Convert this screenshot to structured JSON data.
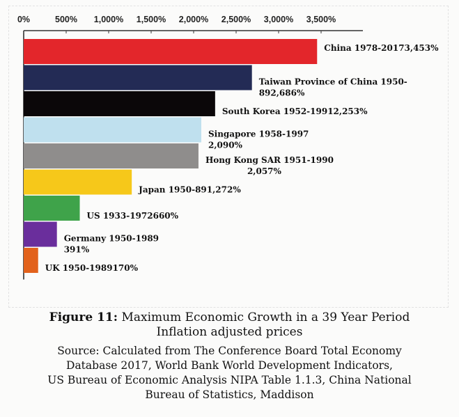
{
  "chart_data": {
    "type": "bar",
    "orientation": "horizontal",
    "x_ticks": [
      "0%",
      "500%",
      "1,000%",
      "1,500%",
      "2,000%",
      "2,500%",
      "3,000%",
      "3,500%"
    ],
    "xlim": [
      0,
      3500
    ],
    "axis_position": "top",
    "grid": false,
    "categories": [
      "China",
      "Taiwan Province of China",
      "South Korea",
      "Singapore",
      "Hong Kong SAR",
      "Japan",
      "US",
      "Germany",
      "UK"
    ],
    "values": [
      3453,
      2686,
      2253,
      2090,
      2057,
      1272,
      660,
      391,
      170
    ],
    "colors": [
      "#e3262b",
      "#232b55",
      "#0b0709",
      "#bfe0ee",
      "#8f8d8c",
      "#f6c81a",
      "#3fa34a",
      "#6a2e9c",
      "#e2621c"
    ],
    "labels": [
      [
        "China 1978-20173,453%"
      ],
      [
        "Taiwan Province of China 1950-",
        "892,686%"
      ],
      [
        "South Korea 1952-19912,253%"
      ],
      [
        "Singapore 1958-1997",
        "2,090%"
      ],
      [
        "Hong Kong SAR 1951-1990",
        "2,057%"
      ],
      [
        "Japan 1950-891,272%"
      ],
      [
        "US 1933-1972660%"
      ],
      [
        "Germany 1950-1989",
        "391%"
      ],
      [
        "UK 1950-1989170%"
      ]
    ]
  },
  "caption": {
    "figure_number": "Figure 11:",
    "title": "Maximum Economic Growth in a 39 Year Period",
    "subtitle": "Inflation adjusted prices",
    "source_lines": [
      "Source: Calculated from The Conference Board Total Economy",
      "Database 2017, World Bank World Development Indicators,",
      "US Bureau of Economic Analysis NIPA Table 1.1.3, China National",
      "Bureau of Statistics, Maddison"
    ]
  }
}
